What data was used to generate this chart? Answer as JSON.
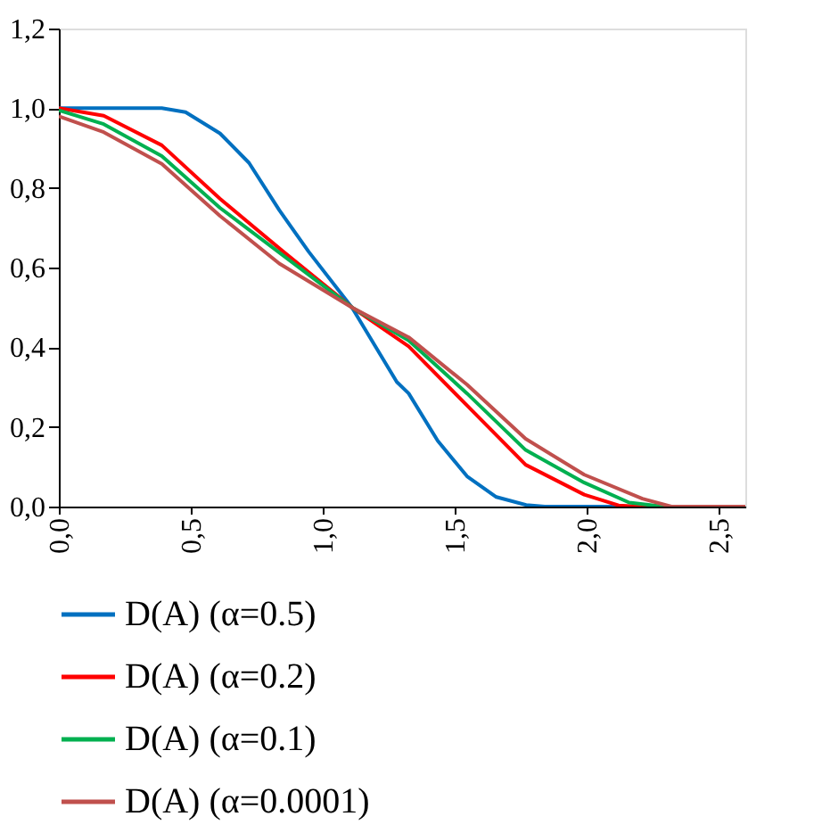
{
  "chart_data": {
    "type": "line",
    "xlim": [
      0,
      2.6
    ],
    "ylim": [
      0,
      1.2
    ],
    "xticks": [
      {
        "value": 0,
        "label": "0,0"
      },
      {
        "value": 0.5,
        "label": "0,5"
      },
      {
        "value": 1.0,
        "label": "1,0"
      },
      {
        "value": 1.5,
        "label": "1,5"
      },
      {
        "value": 2.0,
        "label": "2,0"
      },
      {
        "value": 2.5,
        "label": "2,5"
      }
    ],
    "yticks": [
      {
        "value": 0,
        "label": "0,0"
      },
      {
        "value": 0.2,
        "label": "0,2"
      },
      {
        "value": 0.4,
        "label": "0,4"
      },
      {
        "value": 0.6,
        "label": "0,6"
      },
      {
        "value": 0.8,
        "label": "0,8"
      },
      {
        "value": 1.0,
        "label": "1,0"
      },
      {
        "value": 1.2,
        "label": "1,2"
      }
    ],
    "grid": false,
    "legend": "bottom",
    "marker": "none",
    "line_style": "solid",
    "series": [
      {
        "name": "D(A) (α=0.5)",
        "color": "#0070c0",
        "x": [
          0,
          0.2,
          0.39,
          0.48,
          0.61,
          0.72,
          0.835,
          0.946,
          1.11,
          1.28,
          1.325,
          1.435,
          1.546,
          1.657,
          1.77,
          1.84,
          2.6
        ],
        "values": [
          1.0,
          1.0,
          1.0,
          0.99,
          0.937,
          0.863,
          0.744,
          0.64,
          0.5,
          0.313,
          0.284,
          0.165,
          0.076,
          0.024,
          0.004,
          0,
          0
        ]
      },
      {
        "name": "D(A) (α=0.2)",
        "color": "#ff0000",
        "x": [
          0,
          0.17,
          0.39,
          0.61,
          0.85,
          1.11,
          1.325,
          1.546,
          1.768,
          1.99,
          2.12,
          2.2,
          2.6
        ],
        "values": [
          1.0,
          0.981,
          0.907,
          0.773,
          0.64,
          0.5,
          0.402,
          0.254,
          0.105,
          0.03,
          0.003,
          0,
          0
        ]
      },
      {
        "name": "D(A) (α=0.1)",
        "color": "#00b050",
        "x": [
          0,
          0.17,
          0.39,
          0.61,
          1.11,
          1.325,
          1.546,
          1.768,
          1.99,
          2.16,
          2.29,
          2.6
        ],
        "values": [
          0.995,
          0.96,
          0.88,
          0.75,
          0.5,
          0.417,
          0.284,
          0.142,
          0.06,
          0.01,
          0,
          0
        ]
      },
      {
        "name": "D(A) (α=0.0001)",
        "color": "#c0504d",
        "x": [
          0,
          0.17,
          0.39,
          0.61,
          0.835,
          1.11,
          1.325,
          1.546,
          1.768,
          1.99,
          2.21,
          2.32,
          2.6
        ],
        "values": [
          0.98,
          0.94,
          0.86,
          0.73,
          0.61,
          0.5,
          0.425,
          0.306,
          0.17,
          0.08,
          0.02,
          0,
          0
        ]
      }
    ]
  }
}
